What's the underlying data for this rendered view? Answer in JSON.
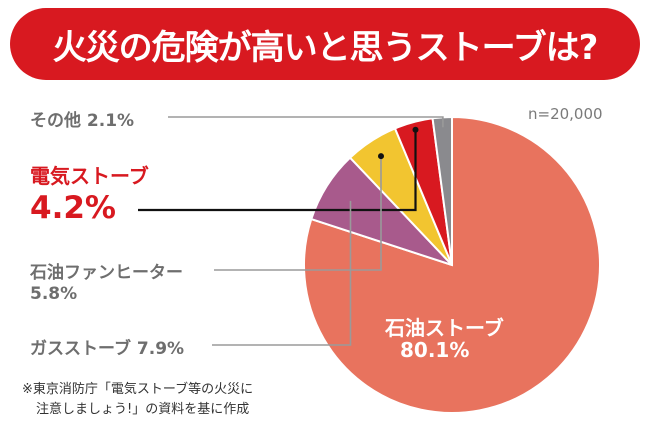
{
  "title": "火災の危険が高いと思うストーブは?",
  "sample_size": "n=20,000",
  "note_line1": "※東京消防庁「電気ストーブ等の火災に",
  "note_line2": "注意しましょう!」の資料を基に作成",
  "chart_data": {
    "type": "pie",
    "title": "火災の危険が高いと思うストーブは?",
    "slices": [
      {
        "key": "oil",
        "label": "石油ストーブ",
        "value_label": "80.1%",
        "value": 80.1,
        "color": "#e8735e"
      },
      {
        "key": "gas",
        "label": "ガスストーブ",
        "value_label": "7.9%",
        "value": 7.9,
        "color": "#a85a8c"
      },
      {
        "key": "fanheater",
        "label": "石油ファンヒーター",
        "value_label": "5.8%",
        "value": 5.8,
        "color": "#f2c530"
      },
      {
        "key": "electric",
        "label": "電気ストーブ",
        "value_label": "4.2%",
        "value": 4.2,
        "color": "#d81920"
      },
      {
        "key": "other",
        "label": "その他",
        "value_label": "2.1%",
        "value": 2.1,
        "color": "#8a8a8e"
      }
    ]
  }
}
